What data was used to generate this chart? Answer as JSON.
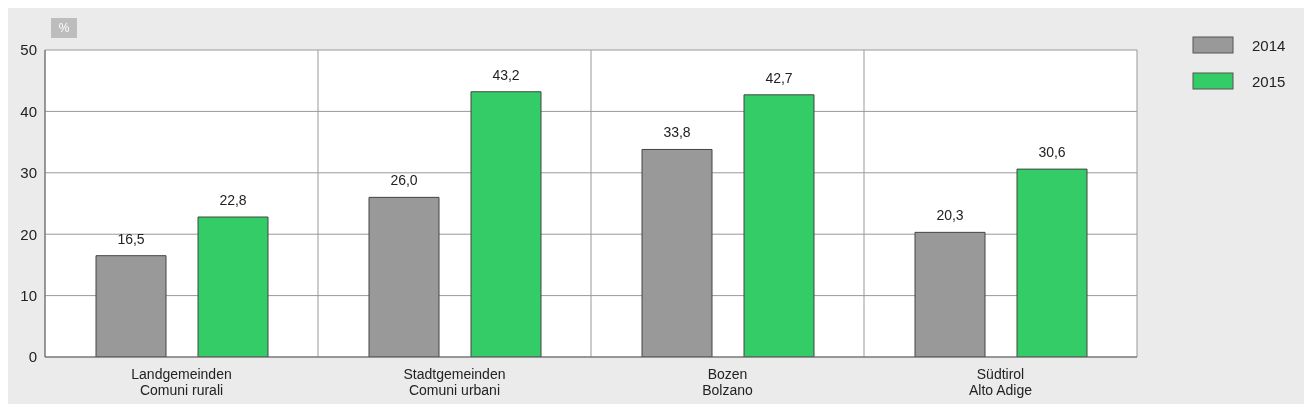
{
  "chart_data": {
    "type": "bar",
    "ylabel": "%",
    "categories": [
      "Landgemeinden\nComuni rurali",
      "Stadtgemeinden\nComuni urbani",
      "Bozen\nBolzano",
      "Südtirol\nAlto Adige"
    ],
    "series": [
      {
        "name": "2014",
        "color": "#999999",
        "values": [
          16.5,
          26.0,
          33.8,
          20.3
        ],
        "value_labels": [
          "16,5",
          "26,0",
          "33,8",
          "20,3"
        ]
      },
      {
        "name": "2015",
        "color": "#33cc66",
        "values": [
          22.8,
          43.2,
          42.7,
          30.6
        ],
        "value_labels": [
          "22,8",
          "43,2",
          "42,7",
          "30,6"
        ]
      }
    ],
    "ylim": [
      0,
      50
    ],
    "yticks": [
      0,
      10,
      20,
      30,
      40,
      50
    ],
    "grid": true,
    "legend": "top right"
  }
}
